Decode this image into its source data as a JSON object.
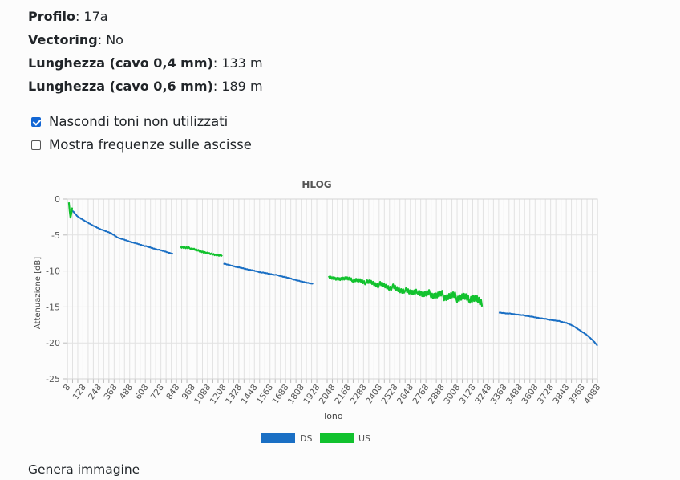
{
  "info": {
    "profile_label": "Profilo",
    "profile_value": "17a",
    "vectoring_label": "Vectoring",
    "vectoring_value": "No",
    "len04_label": "Lunghezza (cavo 0,4 mm)",
    "len04_value": "133 m",
    "len06_label": "Lunghezza (cavo 0,6 mm)",
    "len06_value": "189 m"
  },
  "options": {
    "hide_unused_label": "Nascondi toni non utilizzati",
    "hide_unused_checked": true,
    "show_freq_label": "Mostra frequenze sulle ascisse",
    "show_freq_checked": false
  },
  "generate_image_label": "Genera immagine",
  "chart_data": {
    "type": "line",
    "title": "HLOG",
    "xlabel": "Tono",
    "ylabel": "Attenuazione [dB]",
    "xlim": [
      8,
      4088
    ],
    "ylim": [
      -25,
      0
    ],
    "yticks": [
      "0",
      "-5",
      "-10",
      "-15",
      "-20",
      "-25"
    ],
    "xticks": [
      "8",
      "128",
      "248",
      "368",
      "488",
      "608",
      "728",
      "848",
      "968",
      "1088",
      "1208",
      "1328",
      "1448",
      "1568",
      "1688",
      "1808",
      "1928",
      "2048",
      "2168",
      "2288",
      "2408",
      "2528",
      "2648",
      "2768",
      "2888",
      "3008",
      "3128",
      "3248",
      "3368",
      "3488",
      "3608",
      "3728",
      "3848",
      "3968",
      "4088"
    ],
    "grid": true,
    "legend_position": "bottom",
    "series": [
      {
        "name": "DS",
        "color": "#1a6fc4",
        "segments": [
          [
            [
              40,
              -1.5
            ],
            [
              90,
              -2.5
            ],
            [
              150,
              -3.1
            ],
            [
              200,
              -3.6
            ],
            [
              260,
              -4.2
            ],
            [
              350,
              -4.8
            ],
            [
              400,
              -5.4
            ],
            [
              500,
              -6.0
            ],
            [
              600,
              -6.5
            ],
            [
              700,
              -7.0
            ],
            [
              820,
              -7.6
            ]
          ],
          [
            [
              1210,
              -9.0
            ],
            [
              1300,
              -9.4
            ],
            [
              1400,
              -9.8
            ],
            [
              1500,
              -10.2
            ],
            [
              1600,
              -10.5
            ],
            [
              1700,
              -10.9
            ],
            [
              1800,
              -11.4
            ],
            [
              1900,
              -11.8
            ]
          ],
          [
            [
              3330,
              -15.8
            ],
            [
              3400,
              -15.9
            ],
            [
              3500,
              -16.1
            ],
            [
              3600,
              -16.4
            ],
            [
              3700,
              -16.7
            ],
            [
              3800,
              -17.0
            ],
            [
              3850,
              -17.2
            ],
            [
              3900,
              -17.6
            ],
            [
              3950,
              -18.2
            ],
            [
              4000,
              -18.8
            ],
            [
              4050,
              -19.6
            ],
            [
              4088,
              -20.4
            ]
          ]
        ]
      },
      {
        "name": "US",
        "color": "#12c22e",
        "segments": [
          [
            [
              20,
              -0.6
            ],
            [
              32,
              -2.6
            ],
            [
              45,
              -1.2
            ]
          ],
          [
            [
              880,
              -6.6
            ],
            [
              950,
              -6.8
            ],
            [
              1000,
              -7.0
            ],
            [
              1050,
              -7.3
            ],
            [
              1100,
              -7.5
            ],
            [
              1150,
              -7.7
            ],
            [
              1200,
              -7.8
            ]
          ],
          [
            [
              2020,
              -10.8
            ],
            [
              2100,
              -11.0
            ],
            [
              2200,
              -11.3
            ],
            [
              2300,
              -11.6
            ],
            [
              2400,
              -11.9
            ],
            [
              2500,
              -12.2
            ],
            [
              2600,
              -12.6
            ],
            [
              2700,
              -12.8
            ],
            [
              2800,
              -13.1
            ],
            [
              2900,
              -13.4
            ],
            [
              3000,
              -13.7
            ],
            [
              3100,
              -14.0
            ],
            [
              3200,
              -14.4
            ]
          ]
        ]
      }
    ]
  }
}
